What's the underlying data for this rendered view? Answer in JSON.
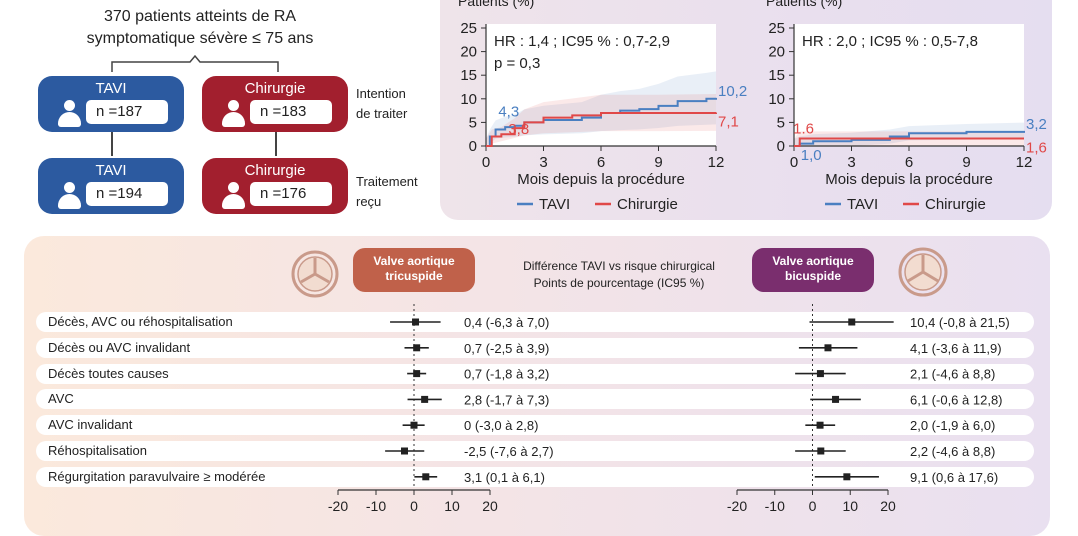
{
  "flow": {
    "title_line1": "370 patients atteints de RA",
    "title_line2": "symptomatique sévère ≤ 75 ans",
    "itt": {
      "tavi_label": "TAVI",
      "tavi_n": "n =187",
      "surg_label": "Chirurgie",
      "surg_n": "n =183",
      "side_line1": "Intention",
      "side_line2": "de traiter"
    },
    "treated": {
      "tavi_label": "TAVI",
      "tavi_n": "n =194",
      "surg_label": "Chirurgie",
      "surg_n": "n =176",
      "side_line1": "Traitement",
      "side_line2": "reçu"
    }
  },
  "colors": {
    "tavi": "#4a7fc1",
    "surgery": "#e04848",
    "tavi_box": "#2c5aa0",
    "surgery_box": "#a21f2e",
    "tricuspid_badge": "#c0614a",
    "bicuspid_badge": "#7a2e6e"
  },
  "chart_data": [
    {
      "type": "line",
      "title": "Patients (%)",
      "annotation_line1": "HR : 1,4 ; IC95 % : 0,7-2,9",
      "annotation_line2": "p = 0,3",
      "xlabel": "Mois depuis la procédure",
      "xlim": [
        0,
        12
      ],
      "ylim": [
        0,
        25
      ],
      "xticks": [
        "0",
        "3",
        "6",
        "9",
        "12"
      ],
      "yticks": [
        "0",
        "5",
        "10",
        "15",
        "20",
        "25"
      ],
      "series": [
        {
          "name": "TAVI",
          "points": [
            [
              0,
              0
            ],
            [
              0.2,
              2
            ],
            [
              0.5,
              3.5
            ],
            [
              1,
              4
            ],
            [
              1.5,
              4.3
            ],
            [
              2,
              5
            ],
            [
              3,
              5.5
            ],
            [
              5,
              6
            ],
            [
              6,
              7
            ],
            [
              7,
              7.5
            ],
            [
              8,
              7.8
            ],
            [
              9,
              8.5
            ],
            [
              10,
              9.5
            ],
            [
              11.5,
              10
            ],
            [
              12,
              10.2
            ]
          ],
          "end_label": "10,2",
          "mid_label": "4,3",
          "mid_x": 1.5
        },
        {
          "name": "Chirurgie",
          "points": [
            [
              0,
              0
            ],
            [
              0.3,
              2
            ],
            [
              0.8,
              2.5
            ],
            [
              1.5,
              3.8
            ],
            [
              2,
              5
            ],
            [
              3,
              6
            ],
            [
              4.5,
              6.5
            ],
            [
              6,
              7
            ],
            [
              9,
              7
            ],
            [
              12,
              7.1
            ]
          ],
          "end_label": "7,1",
          "mid_label": "3,8",
          "mid_x": 1.5
        }
      ]
    },
    {
      "type": "line",
      "title": "Patients (%)",
      "annotation_line1": "HR : 2,0 ; IC95 % : 0,5-7,8",
      "xlabel": "Mois depuis la procédure",
      "xlim": [
        0,
        12
      ],
      "ylim": [
        0,
        25
      ],
      "xticks": [
        "0",
        "3",
        "6",
        "9",
        "12"
      ],
      "yticks": [
        "0",
        "5",
        "10",
        "15",
        "20",
        "25"
      ],
      "series": [
        {
          "name": "TAVI",
          "points": [
            [
              0,
              0
            ],
            [
              0.3,
              0.5
            ],
            [
              1,
              1.0
            ],
            [
              3,
              1.3
            ],
            [
              5,
              2
            ],
            [
              6,
              2.7
            ],
            [
              9,
              3
            ],
            [
              12,
              3.2
            ]
          ],
          "end_label": "3,2",
          "mid_label": "1,0",
          "mid_x": 1
        },
        {
          "name": "Chirurgie",
          "points": [
            [
              0,
              0
            ],
            [
              0.3,
              1.6
            ],
            [
              3,
              1.6
            ],
            [
              6,
              1.6
            ],
            [
              12,
              1.6
            ]
          ],
          "end_label": "1,6",
          "mid_label": "1.6",
          "mid_x": 0.5
        }
      ]
    },
    {
      "type": "forest",
      "center_line1": "Différence TAVI vs risque chirurgical",
      "center_line2": "Points de pourcentage (IC95 %)",
      "xlim": [
        -20,
        20
      ],
      "xticks": [
        "-20",
        "-10",
        "0",
        "10",
        "20"
      ],
      "groups": [
        {
          "name_line1": "Valve aortique",
          "name_line2": "tricuspide",
          "points": [
            [
              0.4,
              -6.3,
              7.0
            ],
            [
              0.7,
              -2.5,
              3.9
            ],
            [
              0.7,
              -1.8,
              3.2
            ],
            [
              2.8,
              -1.7,
              7.3
            ],
            [
              0,
              -3.0,
              2.8
            ],
            [
              -2.5,
              -7.6,
              2.7
            ],
            [
              3.1,
              0.1,
              6.1
            ]
          ],
          "labels": [
            "0,4 (-6,3 à 7,0)",
            "0,7 (-2,5 à 3,9)",
            "0,7 (-1,8 à 3,2)",
            "2,8 (-1,7 à 7,3)",
            "0 (-3,0 à 2,8)",
            "-2,5 (-7,6 à 2,7)",
            "3,1 (0,1 à 6,1)"
          ]
        },
        {
          "name_line1": "Valve aortique",
          "name_line2": "bicuspide",
          "points": [
            [
              10.4,
              -0.8,
              21.5
            ],
            [
              4.1,
              -3.6,
              11.9
            ],
            [
              2.1,
              -4.6,
              8.8
            ],
            [
              6.1,
              -0.6,
              12.8
            ],
            [
              2.0,
              -1.9,
              6.0
            ],
            [
              2.2,
              -4.6,
              8.8
            ],
            [
              9.1,
              0.6,
              17.6
            ]
          ],
          "labels": [
            "10,4 (-0,8 à 21,5)",
            "4,1 (-3,6 à 11,9)",
            "2,1 (-4,6 à 8,8)",
            "6,1 (-0,6 à 12,8)",
            "2,0 (-1,9 à 6,0)",
            "2,2 (-4,6 à 8,8)",
            "9,1 (0,6 à 17,6)"
          ]
        }
      ],
      "categories": [
        "Décès, AVC ou réhospitalisation",
        "Décès ou AVC invalidant",
        "Décès toutes causes",
        "AVC",
        "AVC invalidant",
        "Réhospitalisation",
        "Régurgitation paravulvaire ≥ modérée"
      ]
    }
  ]
}
